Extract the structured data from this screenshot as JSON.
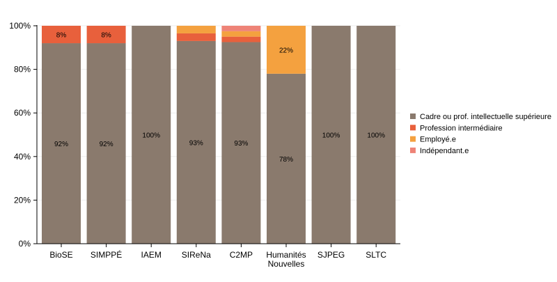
{
  "chart_data": {
    "type": "bar",
    "stacked": true,
    "normalized": true,
    "categories": [
      "BioSE",
      "SIMPPÉ",
      "IAEM",
      "SIReNa",
      "C2MP",
      "Humanités\nNouvelles",
      "SJPEG",
      "SLTC"
    ],
    "series": [
      {
        "name": "Cadre ou prof. intellectuelle supérieure",
        "color": "#8a7a6d",
        "values": [
          92,
          92,
          100,
          93,
          92.5,
          78,
          100,
          100
        ],
        "labels": [
          "92%",
          "92%",
          "100%",
          "93%",
          "93%",
          "78%",
          "100%",
          "100%"
        ]
      },
      {
        "name": "Profession intermédiaire",
        "color": "#e8603c",
        "values": [
          8,
          8,
          0,
          3.5,
          2.5,
          0,
          0,
          0
        ],
        "labels": [
          "8%",
          "8%",
          "",
          "",
          "",
          "",
          "",
          ""
        ]
      },
      {
        "name": "Employé.e",
        "color": "#f4a13f",
        "values": [
          0,
          0,
          0,
          3.5,
          2.5,
          22,
          0,
          0
        ],
        "labels": [
          "",
          "",
          "",
          "",
          "",
          "22%",
          "",
          ""
        ]
      },
      {
        "name": "Indépendant.e",
        "color": "#ee8377",
        "values": [
          0,
          0,
          0,
          0,
          2.5,
          0,
          0,
          0
        ],
        "labels": [
          "",
          "",
          "",
          "",
          "",
          "",
          "",
          ""
        ]
      }
    ],
    "yticks": [
      "0%",
      "20%",
      "40%",
      "60%",
      "80%",
      "100%"
    ],
    "ylim": [
      0,
      100
    ],
    "grid": true,
    "legend": "right"
  }
}
